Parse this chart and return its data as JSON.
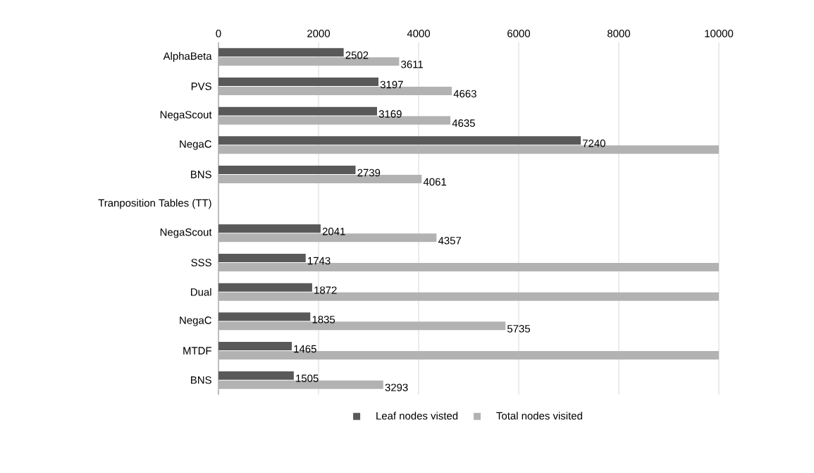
{
  "chart_data": {
    "type": "bar",
    "orientation": "horizontal",
    "categories": [
      "AlphaBeta",
      "PVS",
      "NegaScout",
      "NegaC",
      "BNS",
      "Tranposition Tables (TT)",
      "NegaScout",
      "SSS",
      "Dual",
      "NegaC",
      "MTDF",
      "BNS"
    ],
    "series": [
      {
        "name": "Leaf nodes visted",
        "color": "#595959",
        "values": [
          2502,
          3197,
          3169,
          7240,
          2739,
          null,
          2041,
          1743,
          1872,
          1835,
          1465,
          1505
        ],
        "value_labels": [
          "2502",
          "3197",
          "3169",
          "7240",
          "2739",
          null,
          "2041",
          "1743",
          "1872",
          "1835",
          "1465",
          "1505"
        ]
      },
      {
        "name": "Total nodes visited",
        "color": "#b2b2b2",
        "values": [
          3611,
          4663,
          4635,
          10000,
          4061,
          null,
          4357,
          10000,
          10000,
          5735,
          10000,
          3293
        ],
        "value_labels": [
          "3611",
          "4663",
          "4635",
          null,
          "4061",
          null,
          "4357",
          null,
          null,
          "5735",
          null,
          "3293"
        ]
      }
    ],
    "xlim": [
      0,
      10000
    ],
    "xticks": [
      0,
      2000,
      4000,
      6000,
      8000,
      10000
    ],
    "grid": "x",
    "legend": "bottom"
  }
}
